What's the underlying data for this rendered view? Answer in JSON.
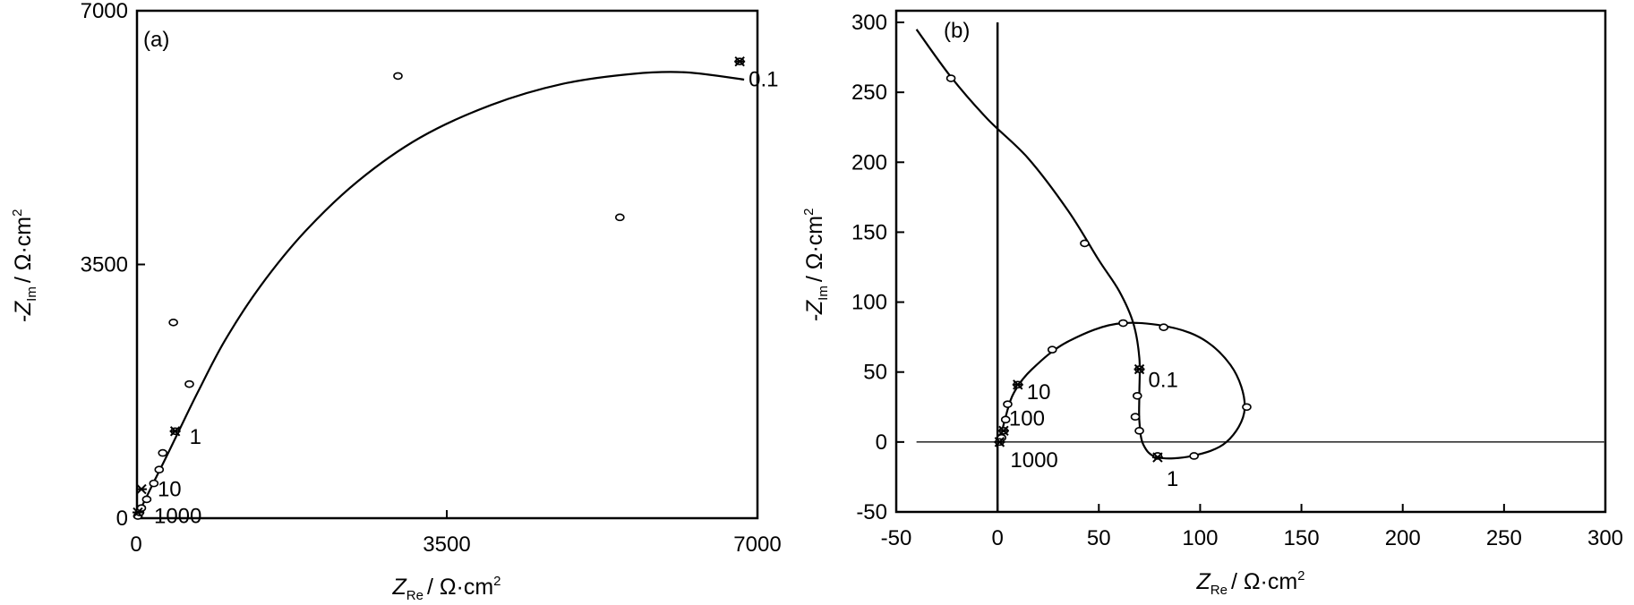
{
  "chart_data": [
    {
      "type": "scatter",
      "panel_label": "(a)",
      "xlabel": {
        "symbol": "Z",
        "sub": "Re",
        "unit": "/ Ω·cm",
        "sup": "2"
      },
      "ylabel": {
        "symbol": "-Z",
        "sub": "Im",
        "unit": "/ Ω·cm",
        "sup": "2"
      },
      "xlim": [
        0,
        7000
      ],
      "ylim": [
        0,
        7000
      ],
      "xticks": [
        "0",
        "3500",
        "7000"
      ],
      "yticks": [
        "0",
        "3500",
        "7000"
      ],
      "series": [
        {
          "points": [
            {
              "x": 20,
              "y": 30
            },
            {
              "x": 40,
              "y": 80
            },
            {
              "x": 60,
              "y": 140
            },
            {
              "x": 120,
              "y": 260
            },
            {
              "x": 200,
              "y": 480
            },
            {
              "x": 260,
              "y": 670
            },
            {
              "x": 300,
              "y": 900
            },
            {
              "x": 440,
              "y": 1200
            },
            {
              "x": 600,
              "y": 1850
            },
            {
              "x": 420,
              "y": 2700
            },
            {
              "x": 2950,
              "y": 6100
            },
            {
              "x": 5450,
              "y": 4150
            },
            {
              "x": 6800,
              "y": 6300
            }
          ],
          "fit_curve": [
            {
              "x": 0,
              "y": 0
            },
            {
              "x": 80,
              "y": 200
            },
            {
              "x": 200,
              "y": 500
            },
            {
              "x": 350,
              "y": 870
            },
            {
              "x": 500,
              "y": 1250
            },
            {
              "x": 700,
              "y": 1750
            },
            {
              "x": 1000,
              "y": 2450
            },
            {
              "x": 1400,
              "y": 3200
            },
            {
              "x": 1900,
              "y": 3950
            },
            {
              "x": 2500,
              "y": 4650
            },
            {
              "x": 3200,
              "y": 5250
            },
            {
              "x": 4000,
              "y": 5700
            },
            {
              "x": 4800,
              "y": 5990
            },
            {
              "x": 5600,
              "y": 6130
            },
            {
              "x": 6200,
              "y": 6150
            },
            {
              "x": 6850,
              "y": 6050
            }
          ]
        }
      ],
      "annotations": [
        {
          "text": "0.1",
          "x": 6800,
          "y": 6300
        },
        {
          "text": "1",
          "x": 440,
          "y": 1200
        },
        {
          "text": "10",
          "x": 60,
          "y": 400
        },
        {
          "text": "1000",
          "x": 20,
          "y": 80
        }
      ]
    },
    {
      "type": "scatter",
      "panel_label": "(b)",
      "xlabel": {
        "symbol": "Z",
        "sub": "Re",
        "unit": "/ Ω·cm",
        "sup": "2"
      },
      "ylabel": {
        "symbol": "-Z",
        "sub": "Im",
        "unit": "/ Ω·cm",
        "sup": "2"
      },
      "xlim": [
        -50,
        300
      ],
      "ylim": [
        -50,
        300
      ],
      "xticks": [
        "-50",
        "0",
        "50",
        "100",
        "150",
        "200",
        "250",
        "300"
      ],
      "yticks": [
        "-50",
        "0",
        "50",
        "100",
        "150",
        "200",
        "250",
        "300"
      ],
      "series": [
        {
          "points": [
            {
              "x": -23,
              "y": 260
            },
            {
              "x": 43,
              "y": 142
            },
            {
              "x": 62,
              "y": 85
            },
            {
              "x": 82,
              "y": 82
            },
            {
              "x": 123,
              "y": 25
            },
            {
              "x": 97,
              "y": -10
            },
            {
              "x": 79,
              "y": -10
            },
            {
              "x": 70,
              "y": 8
            },
            {
              "x": 68,
              "y": 18
            },
            {
              "x": 69,
              "y": 33
            },
            {
              "x": 70,
              "y": 52
            },
            {
              "x": 27,
              "y": 66
            },
            {
              "x": 10,
              "y": 41
            },
            {
              "x": 5,
              "y": 27
            },
            {
              "x": 4,
              "y": 16
            },
            {
              "x": 3,
              "y": 8
            },
            {
              "x": 2,
              "y": 3
            },
            {
              "x": 1,
              "y": 0
            }
          ],
          "fit_curve": [
            {
              "x": -40,
              "y": 295
            },
            {
              "x": -23,
              "y": 261
            },
            {
              "x": -5,
              "y": 231
            },
            {
              "x": 15,
              "y": 203
            },
            {
              "x": 35,
              "y": 165
            },
            {
              "x": 50,
              "y": 130
            },
            {
              "x": 60,
              "y": 108
            },
            {
              "x": 67,
              "y": 85
            },
            {
              "x": 70,
              "y": 60
            },
            {
              "x": 70,
              "y": 35
            },
            {
              "x": 70,
              "y": 15
            },
            {
              "x": 72,
              "y": -2
            },
            {
              "x": 79,
              "y": -11
            },
            {
              "x": 96,
              "y": -10
            },
            {
              "x": 113,
              "y": 0
            },
            {
              "x": 122,
              "y": 24
            },
            {
              "x": 115,
              "y": 55
            },
            {
              "x": 95,
              "y": 78
            },
            {
              "x": 62,
              "y": 85
            },
            {
              "x": 35,
              "y": 72
            },
            {
              "x": 17,
              "y": 52
            },
            {
              "x": 8,
              "y": 35
            },
            {
              "x": 4,
              "y": 18
            },
            {
              "x": 1,
              "y": 0
            }
          ]
        }
      ],
      "reference_lines": [
        {
          "orientation": "vertical",
          "value": 0
        },
        {
          "orientation": "horizontal",
          "value": 0
        }
      ],
      "annotations": [
        {
          "text": "10",
          "x": 10,
          "y": 41
        },
        {
          "text": "0.1",
          "x": 70,
          "y": 52
        },
        {
          "text": "100",
          "x": 3,
          "y": 8
        },
        {
          "text": "1000",
          "x": 1,
          "y": 0
        },
        {
          "text": "1",
          "x": 79,
          "y": -11
        }
      ]
    }
  ]
}
